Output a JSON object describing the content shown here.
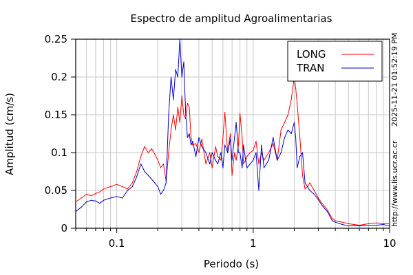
{
  "chart_data": {
    "type": "line",
    "title": "Espectro de amplitud Agroalimentarias",
    "xlabel": "Periodo (s)",
    "ylabel": "Amplitud (cm/s)",
    "xscale": "log",
    "xlim": [
      0.05,
      10
    ],
    "ylim": [
      0,
      0.25
    ],
    "grid": true,
    "legend_position": "top-right",
    "x_tick_labels": [
      "0.1",
      "1",
      "10"
    ],
    "x_tick_values": [
      0.1,
      1,
      10
    ],
    "y_tick_labels": [
      "0",
      "0.05",
      "0.1",
      "0.15",
      "0.2",
      "0.25"
    ],
    "y_tick_values": [
      0,
      0.05,
      0.1,
      0.15,
      0.2,
      0.25
    ],
    "series": [
      {
        "name": "LONG",
        "color": "#ff0000",
        "x": [
          0.05,
          0.055,
          0.06,
          0.065,
          0.07,
          0.075,
          0.08,
          0.09,
          0.1,
          0.11,
          0.12,
          0.13,
          0.14,
          0.15,
          0.16,
          0.17,
          0.18,
          0.19,
          0.2,
          0.21,
          0.22,
          0.23,
          0.24,
          0.25,
          0.26,
          0.27,
          0.28,
          0.29,
          0.3,
          0.31,
          0.32,
          0.33,
          0.34,
          0.35,
          0.36,
          0.38,
          0.4,
          0.42,
          0.45,
          0.48,
          0.5,
          0.53,
          0.55,
          0.58,
          0.6,
          0.62,
          0.65,
          0.68,
          0.7,
          0.73,
          0.75,
          0.78,
          0.8,
          0.83,
          0.85,
          0.88,
          0.9,
          0.95,
          1.0,
          1.05,
          1.1,
          1.15,
          1.2,
          1.3,
          1.4,
          1.5,
          1.6,
          1.7,
          1.8,
          1.9,
          2.0,
          2.05,
          2.1,
          2.2,
          2.3,
          2.4,
          2.5,
          2.6,
          2.8,
          3.0,
          3.2,
          3.5,
          3.8,
          4.0,
          4.5,
          5.0,
          5.5,
          6.0,
          7.0,
          8.0,
          9.0,
          10.0
        ],
        "y": [
          0.035,
          0.04,
          0.045,
          0.043,
          0.046,
          0.048,
          0.052,
          0.055,
          0.058,
          0.055,
          0.052,
          0.06,
          0.075,
          0.095,
          0.108,
          0.1,
          0.105,
          0.098,
          0.09,
          0.08,
          0.085,
          0.062,
          0.1,
          0.13,
          0.15,
          0.13,
          0.16,
          0.14,
          0.175,
          0.15,
          0.145,
          0.165,
          0.16,
          0.12,
          0.11,
          0.112,
          0.1,
          0.118,
          0.085,
          0.1,
          0.08,
          0.108,
          0.095,
          0.09,
          0.12,
          0.153,
          0.1,
          0.125,
          0.07,
          0.1,
          0.09,
          0.11,
          0.152,
          0.12,
          0.085,
          0.09,
          0.095,
          0.1,
          0.103,
          0.115,
          0.085,
          0.1,
          0.09,
          0.1,
          0.112,
          0.09,
          0.13,
          0.14,
          0.15,
          0.17,
          0.2,
          0.185,
          0.165,
          0.12,
          0.07,
          0.052,
          0.055,
          0.06,
          0.05,
          0.04,
          0.033,
          0.024,
          0.013,
          0.01,
          0.008,
          0.006,
          0.005,
          0.004,
          0.006,
          0.007,
          0.006,
          0.006
        ]
      },
      {
        "name": "TRAN",
        "color": "#0000cc",
        "x": [
          0.05,
          0.055,
          0.06,
          0.065,
          0.07,
          0.075,
          0.08,
          0.09,
          0.1,
          0.11,
          0.12,
          0.13,
          0.14,
          0.15,
          0.16,
          0.17,
          0.18,
          0.19,
          0.2,
          0.21,
          0.22,
          0.23,
          0.24,
          0.25,
          0.26,
          0.27,
          0.28,
          0.29,
          0.3,
          0.31,
          0.32,
          0.33,
          0.34,
          0.35,
          0.36,
          0.38,
          0.4,
          0.42,
          0.45,
          0.48,
          0.5,
          0.53,
          0.55,
          0.58,
          0.6,
          0.62,
          0.65,
          0.68,
          0.7,
          0.73,
          0.75,
          0.78,
          0.8,
          0.83,
          0.85,
          0.88,
          0.9,
          0.95,
          1.0,
          1.05,
          1.1,
          1.15,
          1.2,
          1.3,
          1.4,
          1.5,
          1.6,
          1.7,
          1.8,
          1.9,
          2.0,
          2.05,
          2.1,
          2.2,
          2.3,
          2.4,
          2.5,
          2.6,
          2.8,
          3.0,
          3.2,
          3.5,
          3.8,
          4.0,
          4.5,
          5.0,
          5.5,
          6.0,
          7.0,
          8.0,
          9.0,
          10.0
        ],
        "y": [
          0.022,
          0.028,
          0.035,
          0.037,
          0.036,
          0.033,
          0.037,
          0.04,
          0.042,
          0.04,
          0.05,
          0.055,
          0.068,
          0.085,
          0.075,
          0.07,
          0.065,
          0.06,
          0.055,
          0.045,
          0.05,
          0.06,
          0.15,
          0.2,
          0.17,
          0.21,
          0.2,
          0.25,
          0.2,
          0.22,
          0.15,
          0.12,
          0.125,
          0.11,
          0.115,
          0.095,
          0.12,
          0.108,
          0.1,
          0.085,
          0.1,
          0.09,
          0.085,
          0.1,
          0.08,
          0.11,
          0.1,
          0.118,
          0.09,
          0.12,
          0.14,
          0.1,
          0.1,
          0.08,
          0.11,
          0.09,
          0.08,
          0.085,
          0.09,
          0.1,
          0.05,
          0.11,
          0.08,
          0.09,
          0.12,
          0.09,
          0.1,
          0.12,
          0.13,
          0.125,
          0.14,
          0.12,
          0.08,
          0.095,
          0.1,
          0.06,
          0.055,
          0.05,
          0.045,
          0.038,
          0.03,
          0.022,
          0.01,
          0.008,
          0.005,
          0.003,
          0.004,
          0.003,
          0.004,
          0.004,
          0.005,
          0.003
        ]
      }
    ]
  },
  "side_label_bottom": "http://www.lis.ucr.ac.cr",
  "side_label_top": "2025-11-21 01:52:19 PM"
}
